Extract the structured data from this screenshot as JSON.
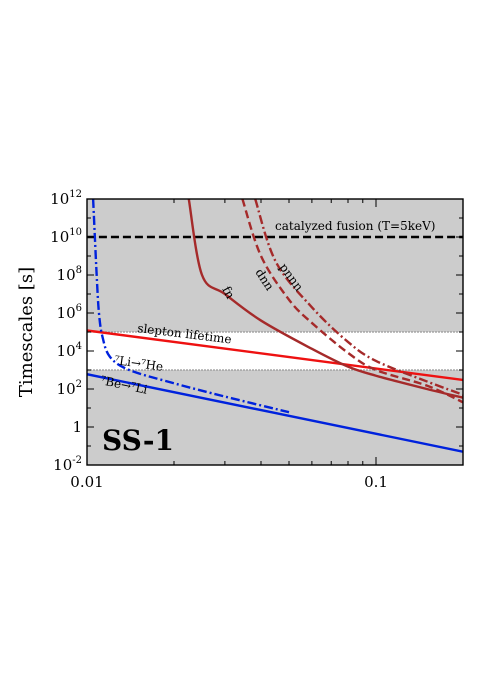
{
  "chart_data": {
    "type": "line",
    "title": "",
    "xlabel": "",
    "ylabel": "Timescales [s]",
    "xscale": "log",
    "yscale": "log",
    "xlim": [
      0.01,
      0.2
    ],
    "ylim": [
      0.01,
      1000000000000.0
    ],
    "panel_label": "SS-1",
    "x_ticks": [
      {
        "value": 0.01,
        "label": "0.01"
      },
      {
        "value": 0.1,
        "label": "0.1"
      }
    ],
    "y_ticks": [
      {
        "value": 1000000000000.0,
        "base": "10",
        "exp": "12"
      },
      {
        "value": 10000000000.0,
        "base": "10",
        "exp": "10"
      },
      {
        "value": 100000000.0,
        "base": "10",
        "exp": "8"
      },
      {
        "value": 1000000.0,
        "base": "10",
        "exp": "6"
      },
      {
        "value": 10000.0,
        "base": "10",
        "exp": "4"
      },
      {
        "value": 100,
        "base": "10",
        "exp": "2"
      },
      {
        "value": 1,
        "base": "1",
        "exp": ""
      },
      {
        "value": 0.01,
        "base": "10",
        "exp": "-2"
      }
    ],
    "shaded_regions": [
      {
        "y_from": 100000.0,
        "y_to": 1000000000000.0,
        "color": "#cccccc"
      },
      {
        "y_from": 0.01,
        "y_to": 1000,
        "color": "#cccccc"
      }
    ],
    "series": [
      {
        "name": "catalyzed fusion (T=5keV)",
        "style": "dashed",
        "color": "#000000",
        "x": [
          0.01,
          0.2
        ],
        "y": [
          10000000000.0,
          10000000000.0
        ]
      },
      {
        "name": "slepton lifetime",
        "style": "solid",
        "color": "#ee1111",
        "x": [
          0.01,
          0.2
        ],
        "y": [
          120000.0,
          300
        ]
      },
      {
        "name": "⁷Be→⁷Li",
        "style": "solid",
        "color": "#0022dd",
        "x": [
          0.01,
          0.2
        ],
        "y": [
          600,
          0.05
        ]
      },
      {
        "name": "⁷Li→⁷He",
        "style": "dashdot",
        "color": "#0022dd",
        "x": [
          0.0105,
          0.0108,
          0.011,
          0.0113,
          0.012,
          0.014,
          0.02,
          0.03,
          0.05
        ],
        "y": [
          1000000000000.0,
          100000000.0,
          1000000.0,
          60000.0,
          5000.0,
          1000,
          200,
          40,
          6
        ]
      },
      {
        "name": "fn",
        "style": "solid",
        "color": "#a52a2a",
        "x": [
          0.0225,
          0.025,
          0.03,
          0.04,
          0.06,
          0.08,
          0.1,
          0.15,
          0.2
        ],
        "y": [
          1000000000000.0,
          100000000.0,
          10000000.0,
          400000.0,
          13000.0,
          1500,
          500,
          100,
          35
        ]
      },
      {
        "name": "dnn",
        "style": "dashed",
        "color": "#a52a2a",
        "x": [
          0.0345,
          0.04,
          0.05,
          0.06,
          0.08,
          0.1,
          0.15,
          0.2
        ],
        "y": [
          1000000000000.0,
          1000000000.0,
          5000000.0,
          300000.0,
          8000,
          1000,
          150,
          20
        ]
      },
      {
        "name": "pnnn",
        "style": "dashdot",
        "color": "#a52a2a",
        "x": [
          0.0382,
          0.045,
          0.06,
          0.08,
          0.1,
          0.15,
          0.2
        ],
        "y": [
          1000000000000.0,
          500000000.0,
          2000000.0,
          30000.0,
          3000,
          250,
          50
        ]
      }
    ],
    "annotations": [
      {
        "text": "catalyzed fusion (T=5keV)"
      },
      {
        "text": "slepton lifetime"
      },
      {
        "text": "⁷Li→⁷He"
      },
      {
        "text": "⁷Be→⁷Li"
      },
      {
        "text": "fn"
      },
      {
        "text": "dnn"
      },
      {
        "text": "pnnn"
      }
    ]
  }
}
